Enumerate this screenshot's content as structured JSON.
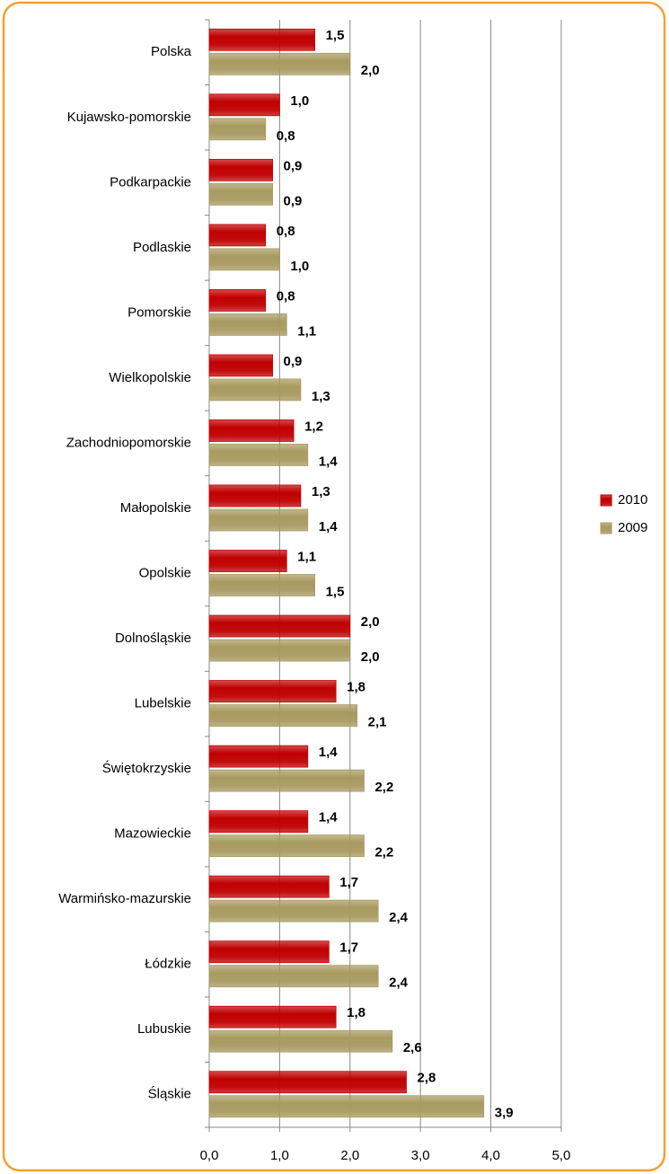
{
  "chart_data": {
    "type": "bar",
    "orientation": "horizontal",
    "categories": [
      "Polska",
      "Kujawsko-pomorskie",
      "Podkarpackie",
      "Podlaskie",
      "Pomorskie",
      "Wielkopolskie",
      "Zachodniopomorskie",
      "Małopolskie",
      "Opolskie",
      "Dolnośląskie",
      "Lubelskie",
      "Świętokrzyskie",
      "Mazowieckie",
      "Warmińsko-mazurskie",
      "Łódzkie",
      "Lubuskie",
      "Śląskie"
    ],
    "series": [
      {
        "name": "2010",
        "color": "#c00000",
        "values": [
          1.5,
          1.0,
          0.9,
          0.8,
          0.8,
          0.9,
          1.2,
          1.3,
          1.1,
          2.0,
          1.8,
          1.4,
          1.4,
          1.7,
          1.7,
          1.8,
          2.8
        ],
        "value_labels": [
          "1,5",
          "1,0",
          "0,9",
          "0,8",
          "0,8",
          "0,9",
          "1,2",
          "1,3",
          "1,1",
          "2,0",
          "1,8",
          "1,4",
          "1,4",
          "1,7",
          "1,7",
          "1,8",
          "2,8"
        ]
      },
      {
        "name": "2009",
        "color": "#a89a60",
        "values": [
          2.0,
          0.8,
          0.9,
          1.0,
          1.1,
          1.3,
          1.4,
          1.4,
          1.5,
          2.0,
          2.1,
          2.2,
          2.2,
          2.4,
          2.4,
          2.6,
          3.9
        ],
        "value_labels": [
          "2,0",
          "0,8",
          "0,9",
          "1,0",
          "1,1",
          "1,3",
          "1,4",
          "1,4",
          "1,5",
          "2,0",
          "2,1",
          "2,2",
          "2,2",
          "2,4",
          "2,4",
          "2,6",
          "3,9"
        ]
      }
    ],
    "xlim": [
      0,
      5
    ],
    "xticks": [
      {
        "value": 0,
        "label": "0,0"
      },
      {
        "value": 1,
        "label": "1,0"
      },
      {
        "value": 2,
        "label": "2,0"
      },
      {
        "value": 3,
        "label": "3,0"
      },
      {
        "value": 4,
        "label": "4,0"
      },
      {
        "value": 5,
        "label": "5,0"
      }
    ],
    "grid": true,
    "legend": "right"
  }
}
